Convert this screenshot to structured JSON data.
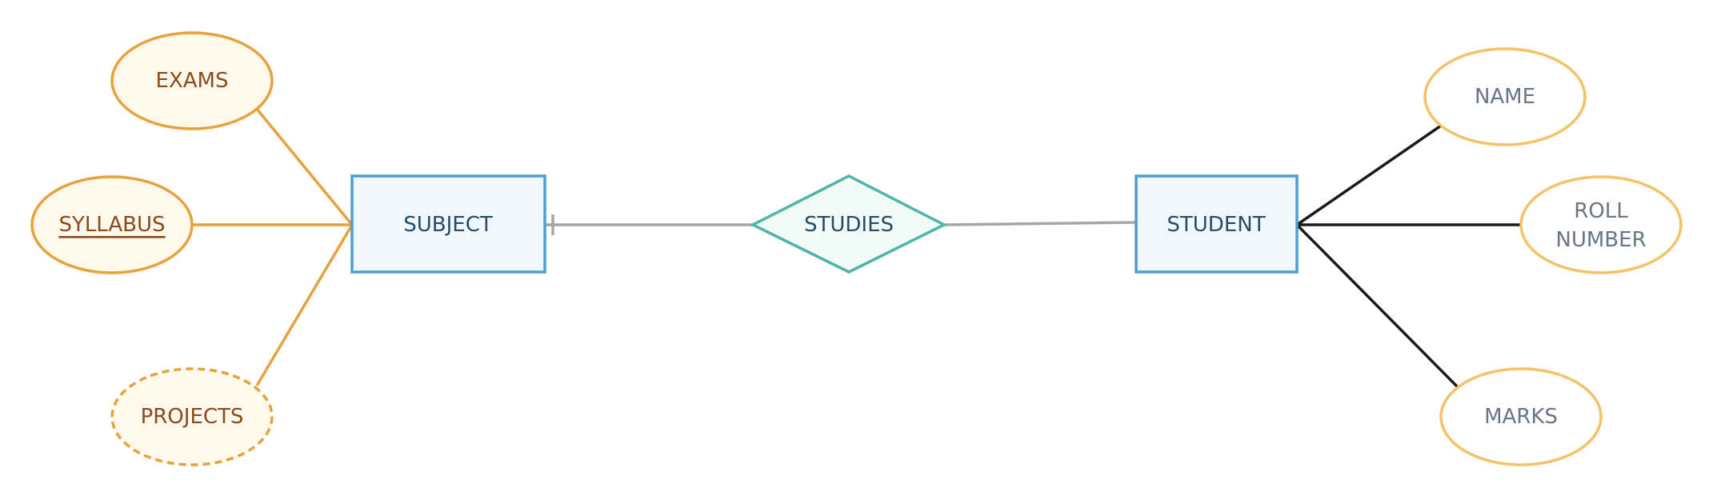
{
  "diagram": {
    "colors": {
      "subject_attr_stroke": "#E6A23C",
      "subject_attr_fill": "#FFF9EB",
      "subject_attr_text": "#8A4A1E",
      "student_attr_stroke": "#F5C266",
      "student_attr_fill": "#FFFFFF",
      "student_attr_text": "#6A7683",
      "entity_stroke": "#4B9FD5",
      "entity_fill": "#F0F7FD",
      "entity_text": "#2A4A66",
      "relationship_stroke": "#4DB6A6",
      "relationship_fill": "#F1FBF8",
      "relationship_text": "#2A4A66",
      "relation_line": "#A6A6A6",
      "subject_link": "#E6A23C",
      "student_link": "#1A1A1A"
    },
    "entities": {
      "subject": {
        "label": "SUBJECT"
      },
      "student": {
        "label": "STUDENT"
      }
    },
    "relationship": {
      "label": "STUDIES"
    },
    "subject_attributes": {
      "exams": {
        "label": "EXAMS",
        "kind": "regular"
      },
      "syllabus": {
        "label": "SYLLABUS",
        "kind": "key"
      },
      "projects": {
        "label": "PROJECTS",
        "kind": "derived"
      }
    },
    "student_attributes": {
      "name": {
        "label": "NAME",
        "kind": "regular"
      },
      "roll_number": {
        "label_line1": "ROLL",
        "label_line2": "NUMBER",
        "kind": "regular"
      },
      "marks": {
        "label": "MARKS",
        "kind": "regular"
      }
    }
  }
}
